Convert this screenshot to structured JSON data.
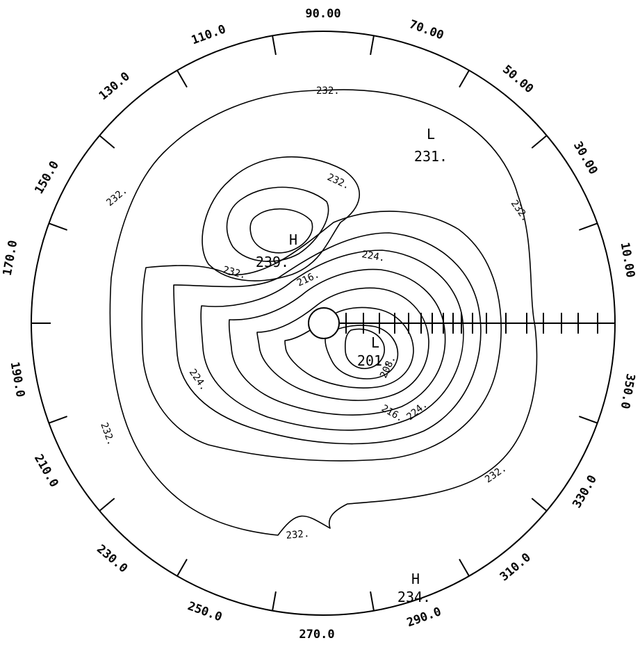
{
  "map": {
    "longitude_labels": [
      "90.00",
      "70.00",
      "50.00",
      "30.00",
      "10.00",
      "350.0",
      "330.0",
      "310.0",
      "290.0",
      "270.0",
      "250.0",
      "230.0",
      "210.0",
      "190.0",
      "170.0",
      "150.0",
      "130.0",
      "110.0"
    ],
    "contour_labels": [
      "232.",
      "232.",
      "232.",
      "232.",
      "232.",
      "232.",
      "232.",
      "232.",
      "224.",
      "224.",
      "224.",
      "216.",
      "216.",
      "208."
    ],
    "extremes": [
      {
        "type": "L",
        "value": "231."
      },
      {
        "type": "H",
        "value": "239."
      },
      {
        "type": "L",
        "value": "201."
      },
      {
        "type": "H",
        "value": "234."
      }
    ]
  }
}
